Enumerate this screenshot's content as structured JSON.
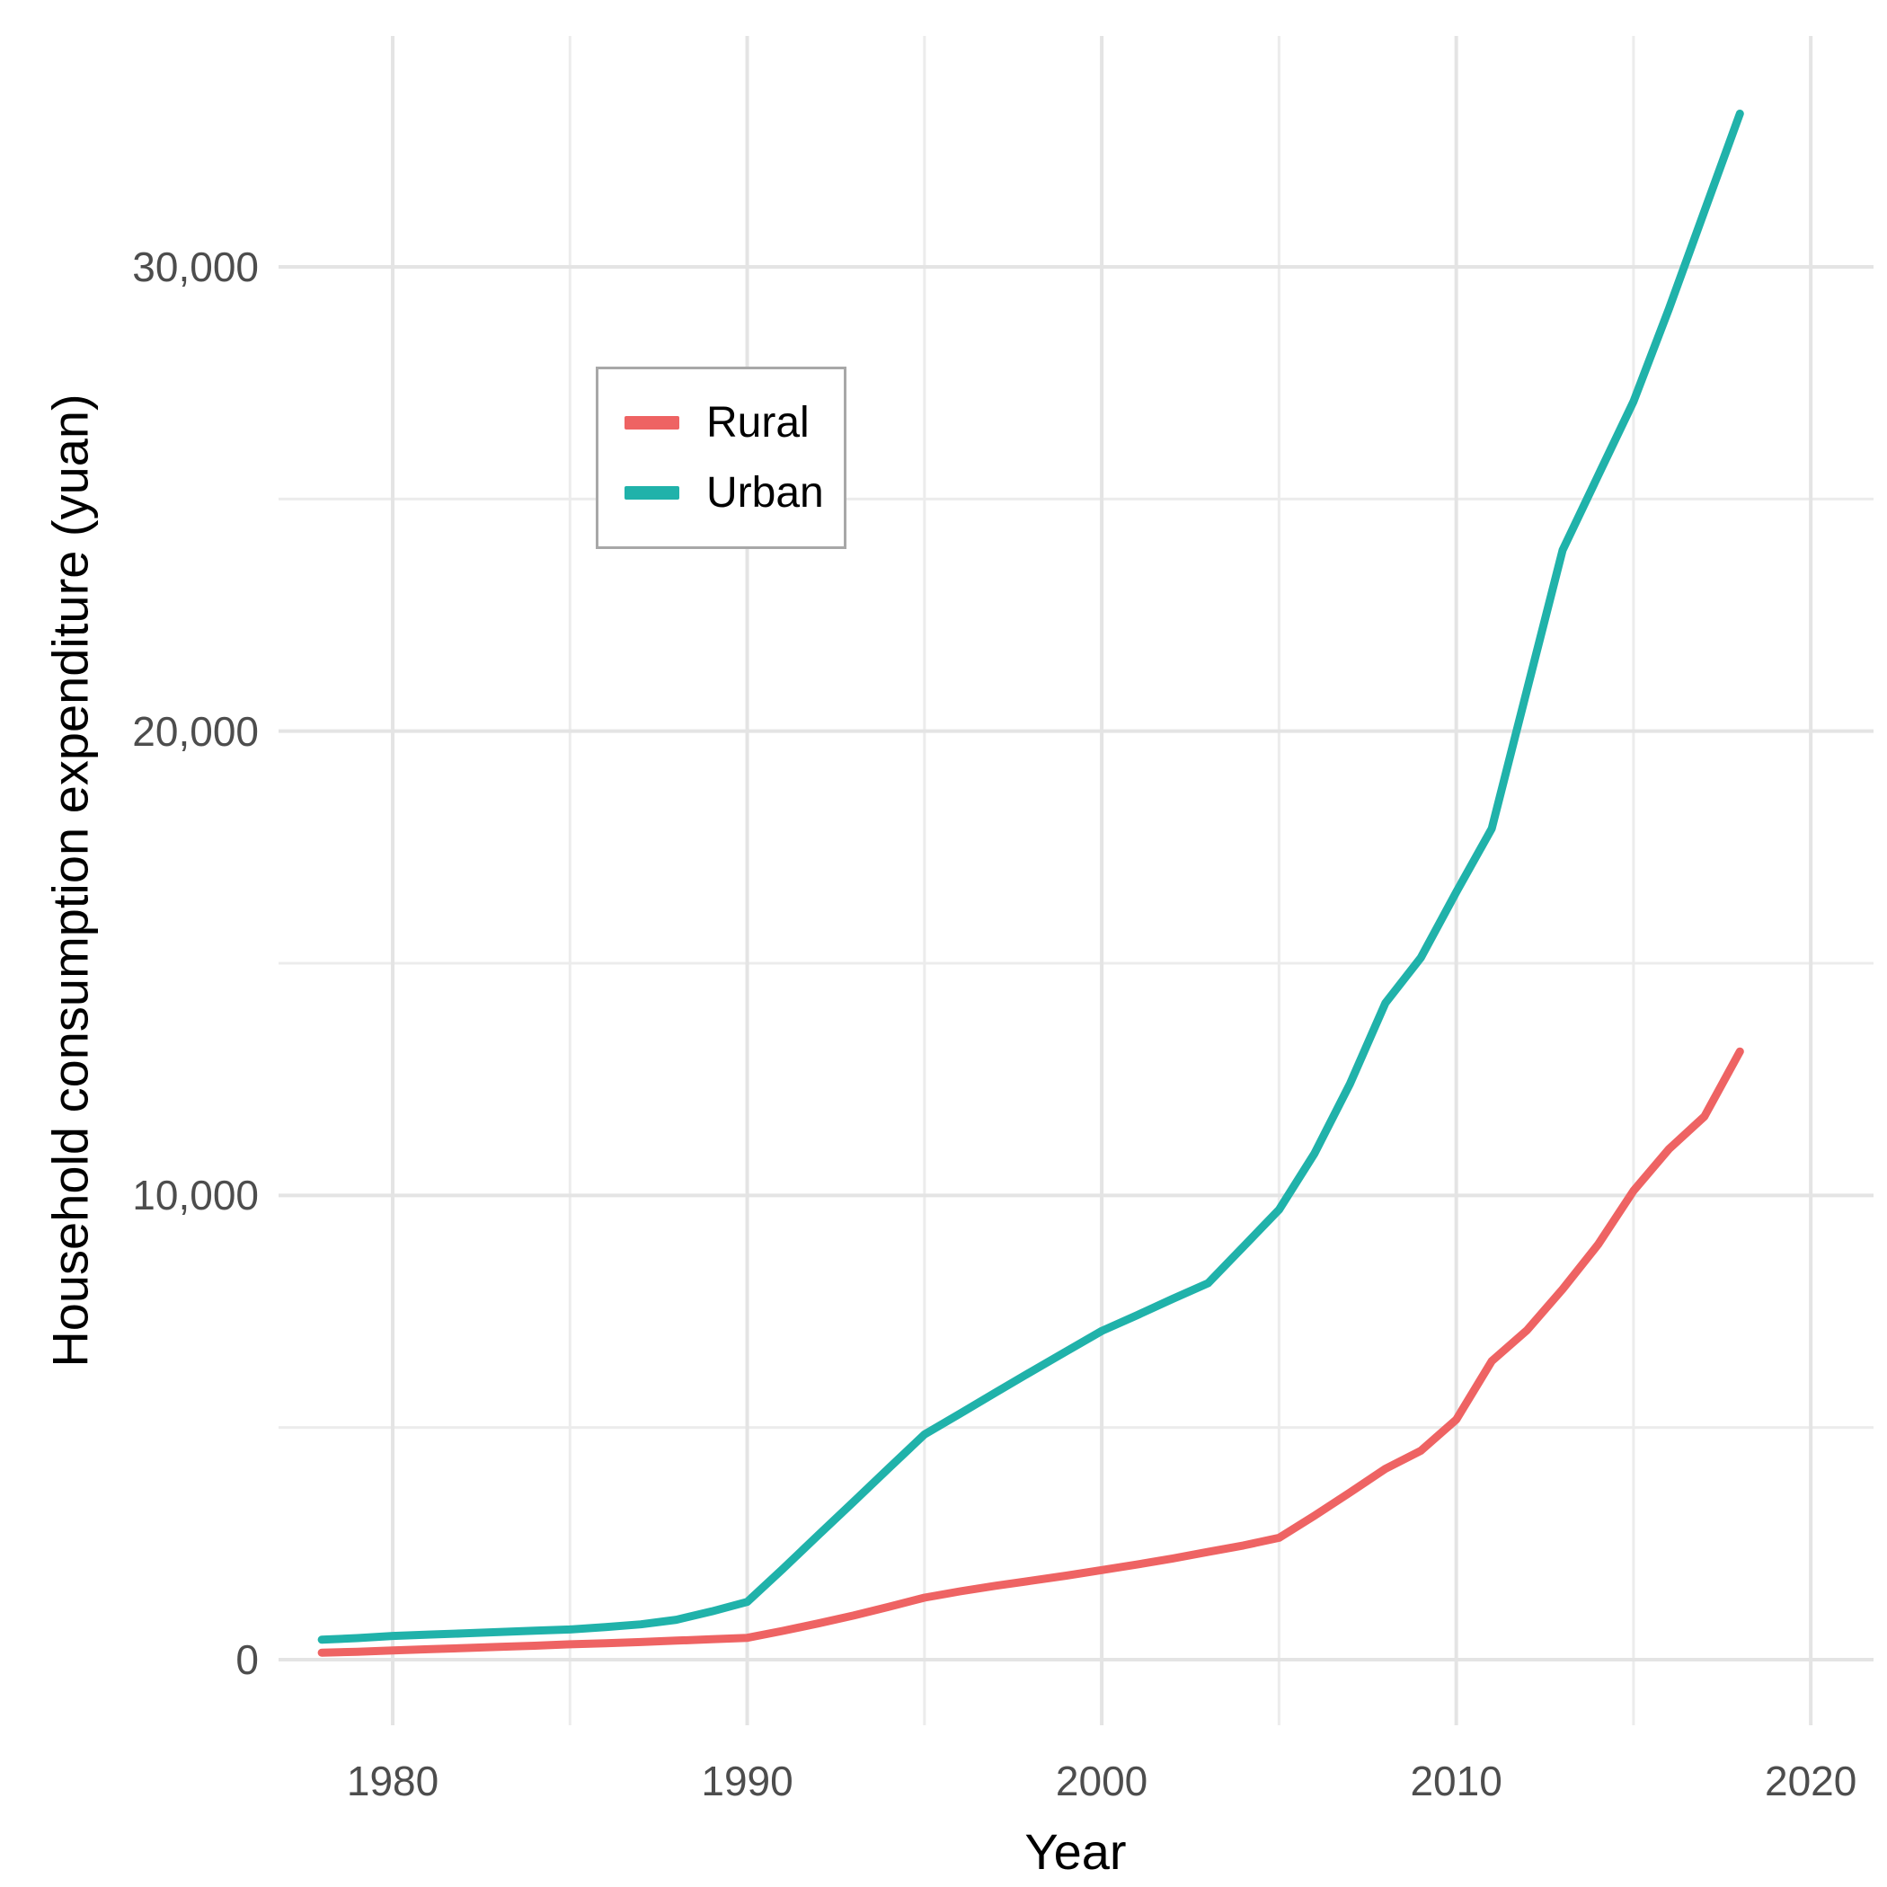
{
  "chart_data": {
    "type": "line",
    "title": "",
    "xlabel": "Year",
    "ylabel": "Household consumption expenditure (yuan)",
    "grid": true,
    "background_color": "#ffffff",
    "grid_major_color": "#e4e4e4",
    "grid_minor_color": "#ececec",
    "legend_position": "inside-top-left",
    "xlim": [
      1976.78,
      2021.77
    ],
    "ylim": [
      -1413,
      34974
    ],
    "x_major_ticks": [
      1980,
      1990,
      2000,
      2010,
      2020
    ],
    "x_major_labels": [
      "1980",
      "1990",
      "2000",
      "2010",
      "2020"
    ],
    "x_minor_ticks": [
      1985,
      1995,
      2005,
      2015
    ],
    "y_major_ticks": [
      0,
      10000,
      20000,
      30000
    ],
    "y_major_labels": [
      "0",
      "10,000",
      "20,000",
      "30,000"
    ],
    "y_minor_ticks": [
      5000,
      15000,
      25000
    ],
    "x": [
      1978,
      1979,
      1980,
      1981,
      1982,
      1983,
      1984,
      1985,
      1986,
      1987,
      1988,
      1989,
      1990,
      1991,
      1992,
      1993,
      1994,
      1995,
      1996,
      1997,
      1998,
      1999,
      2000,
      2001,
      2002,
      2003,
      2004,
      2005,
      2006,
      2007,
      2008,
      2009,
      2010,
      2011,
      2012,
      2013,
      2014,
      2015,
      2016,
      2017,
      2018
    ],
    "series": [
      {
        "name": "Rural",
        "color": "#EE6363",
        "values": [
          150,
          170,
          200,
          225,
          250,
          275,
          300,
          330,
          355,
          380,
          410,
          440,
          470,
          620,
          780,
          950,
          1140,
          1335,
          1470,
          1590,
          1700,
          1810,
          1930,
          2050,
          2180,
          2320,
          2460,
          2625,
          3100,
          3600,
          4110,
          4500,
          5170,
          6430,
          7100,
          7980,
          8940,
          10100,
          11000,
          11700,
          13100
        ]
      },
      {
        "name": "Urban",
        "color": "#20B2AA",
        "values": [
          430,
          465,
          510,
          540,
          565,
          595,
          625,
          650,
          700,
          760,
          860,
          1040,
          1245,
          1950,
          2680,
          3400,
          4130,
          4850,
          5300,
          5750,
          6200,
          6640,
          7080,
          7420,
          7770,
          8110,
          8900,
          9690,
          10900,
          12400,
          14140,
          15120,
          16530,
          17900,
          20900,
          23900,
          25500,
          27100,
          29100,
          31200,
          33300
        ]
      }
    ]
  },
  "legend": {
    "items": [
      {
        "label": "Rural",
        "color": "#EE6363"
      },
      {
        "label": "Urban",
        "color": "#20B2AA"
      }
    ]
  },
  "axes": {
    "x_title": "Year",
    "y_title": "Household consumption expenditure (yuan)"
  }
}
